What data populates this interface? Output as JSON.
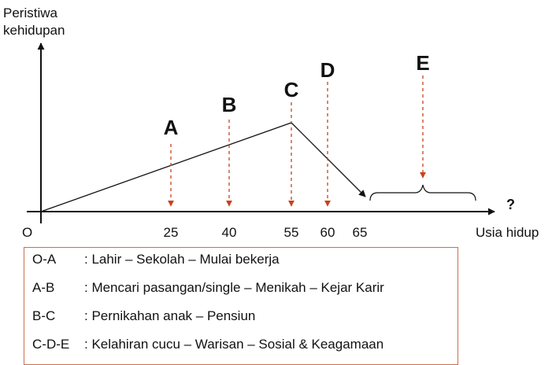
{
  "axis": {
    "y_title_lines": [
      "Peristiwa",
      "kehidupan"
    ],
    "x_title": "Usia hidup",
    "origin_label": "O",
    "x_unknown": "?",
    "ticks": [
      "25",
      "40",
      "55",
      "60",
      "65"
    ]
  },
  "points": [
    {
      "label": "A",
      "age": 25
    },
    {
      "label": "B",
      "age": 40
    },
    {
      "label": "C",
      "age": 55
    },
    {
      "label": "D",
      "age": 60
    },
    {
      "label": "E",
      "age": null
    }
  ],
  "legend": [
    {
      "key": "O-A",
      "text": ": Lahir – Sekolah – Mulai bekerja"
    },
    {
      "key": "A-B",
      "text": ": Mencari pasangan/single – Menikah – Kejar Karir"
    },
    {
      "key": "B-C",
      "text": ": Pernikahan anak – Pensiun"
    },
    {
      "key": "C-D-E",
      "text": ": Kelahiran cucu – Warisan – Sosial & Keagamaan"
    }
  ],
  "colors": {
    "axis": "#111111",
    "guide_arrow": "#c8421c",
    "legend_border": "#c9714d"
  }
}
